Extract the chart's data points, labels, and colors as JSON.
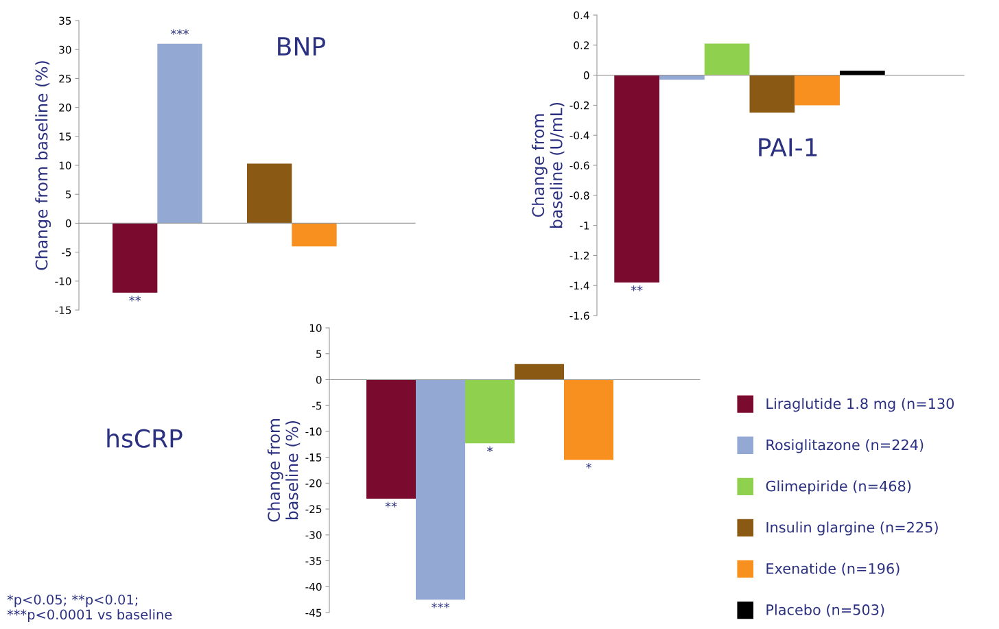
{
  "chart_data": [
    {
      "type": "bar",
      "title": "BNP",
      "ylabel": "Change from baseline (%)",
      "categories": [
        null,
        null,
        null,
        null,
        null,
        null
      ],
      "ylim": [
        -15,
        35
      ],
      "yticks": [
        -15,
        -10,
        -5,
        0,
        5,
        10,
        15,
        20,
        25,
        30,
        35
      ],
      "values": [
        -12,
        31,
        null,
        10.3,
        -4,
        null
      ],
      "colors": [
        "#7a0a2e",
        "#93a9d4",
        null,
        "#8a5a14",
        "#f7901e",
        null
      ],
      "value_labels": [
        "**",
        "***",
        null,
        null,
        null,
        null
      ]
    },
    {
      "type": "bar",
      "title": "PAI-1",
      "ylabel": "Change from\nbaseline (U/mL)",
      "categories": [
        null
      ],
      "ylim": [
        -1.6,
        0.4
      ],
      "yticks": [
        -1.6,
        -1.4,
        -1.2,
        -1,
        -0.8,
        -0.6,
        -0.4,
        -0.2,
        0,
        0.2,
        0.4
      ],
      "legend": "bottom right",
      "series": [
        {
          "name": "Liraglutide 1.8 mg (n=130",
          "color": "#7a0a2e",
          "values": [
            -1.38
          ],
          "value_labels": [
            "**"
          ]
        },
        {
          "name": "Rosiglitazone (n=224)",
          "color": "#93a9d4",
          "values": [
            -0.03
          ]
        },
        {
          "name": "Glimepiride (n=468)",
          "color": "#8fd14f",
          "values": [
            0.21
          ]
        },
        {
          "name": "Insulin glargine (n=225)",
          "color": "#8a5a14",
          "values": [
            -0.25
          ]
        },
        {
          "name": "Exenatide (n=196)",
          "color": "#f7901e",
          "values": [
            -0.2
          ]
        },
        {
          "name": "Placebo (n=503)",
          "color": "#000000",
          "values": [
            0.03
          ]
        }
      ]
    },
    {
      "type": "bar",
      "title": "hsCRP",
      "ylabel": "Change from\nbaseline (%)",
      "categories": [
        null,
        null,
        null,
        null,
        null,
        null
      ],
      "ylim": [
        -45,
        10
      ],
      "yticks": [
        -45,
        -40,
        -35,
        -30,
        -25,
        -20,
        -15,
        -10,
        -5,
        0,
        5,
        10
      ],
      "annotations": [
        "*p<0.05; **p<0.01;\n***p<0.0001 vs baseline"
      ],
      "values": [
        -23,
        -42.5,
        -12.3,
        3,
        -15.5,
        null
      ],
      "colors": [
        "#7a0a2e",
        "#93a9d4",
        "#8fd14f",
        "#8a5a14",
        "#f7901e",
        null
      ],
      "value_labels": [
        "**",
        "***",
        "*",
        null,
        "*",
        null
      ]
    }
  ]
}
